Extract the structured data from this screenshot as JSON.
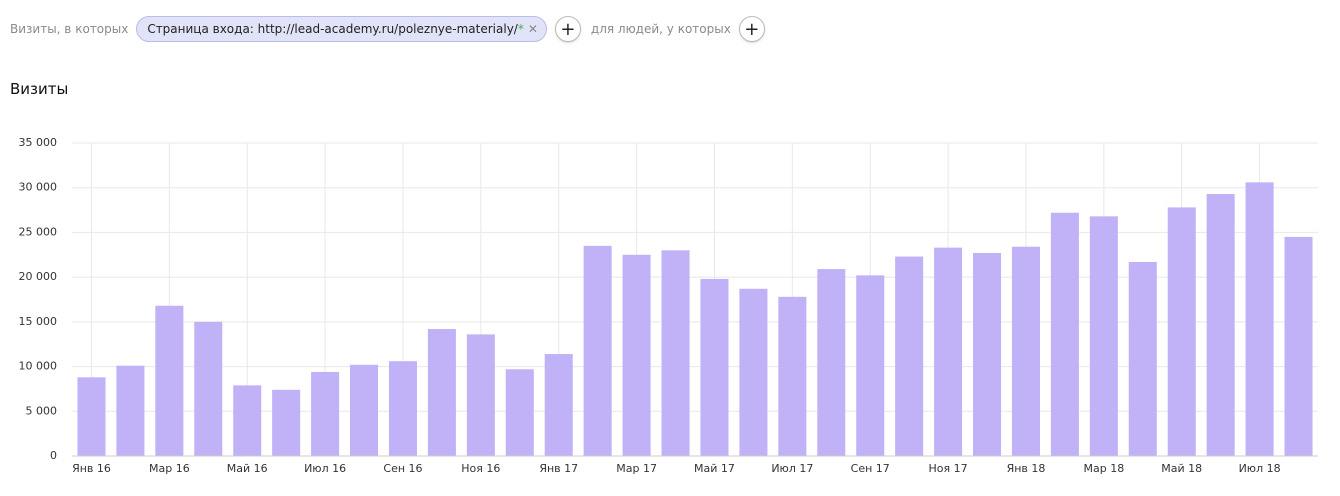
{
  "filter": {
    "prefix": "Визиты, в которых",
    "chip_label": "Страница входа: http://lead-academy.ru/poleznye-materialy/",
    "chip_wildcard": "*",
    "suffix": "для людей, у которых"
  },
  "chart_data": {
    "type": "bar",
    "title": "Визиты",
    "categories": [
      "Янв 16",
      null,
      "Мар 16",
      null,
      "Май 16",
      null,
      "Июл 16",
      null,
      "Сен 16",
      null,
      "Ноя 16",
      null,
      "Янв 17",
      null,
      "Мар 17",
      null,
      "Май 17",
      null,
      "Июл 17",
      null,
      "Сен 17",
      null,
      "Ноя 17",
      null,
      "Янв 18",
      null,
      "Мар 18",
      null,
      "Май 18",
      null,
      "Июл 18",
      null
    ],
    "values": [
      8800,
      10100,
      16800,
      15000,
      7900,
      7400,
      9400,
      10200,
      10600,
      14200,
      13600,
      9700,
      11400,
      23500,
      22500,
      23000,
      19800,
      18700,
      17800,
      20900,
      20200,
      22300,
      23300,
      22700,
      23400,
      27200,
      26800,
      21700,
      27800,
      29300,
      30600,
      24500
    ],
    "color": "#c1b2f8",
    "ylim": [
      0,
      35000
    ],
    "yticks": [
      0,
      {
        "value": 5000,
        "label": "5 000"
      },
      {
        "value": 10000,
        "label": "10 000"
      },
      {
        "value": 15000,
        "label": "15 000"
      },
      {
        "value": 20000,
        "label": "20 000"
      },
      {
        "value": 25000,
        "label": "25 000"
      },
      {
        "value": 30000,
        "label": "30 000"
      },
      {
        "value": 35000,
        "label": "35 000"
      }
    ],
    "grid": true
  }
}
